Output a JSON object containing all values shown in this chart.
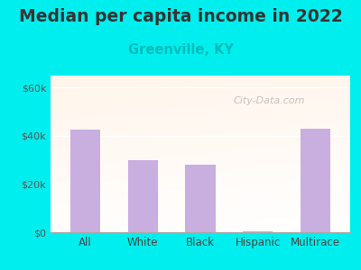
{
  "title": "Median per capita income in 2022",
  "subtitle": "Greenville, KY",
  "categories": [
    "All",
    "White",
    "Black",
    "Hispanic",
    "Multirace"
  ],
  "values": [
    42500,
    30000,
    28000,
    400,
    43000
  ],
  "bar_color": "#c9aee0",
  "title_fontsize": 13.5,
  "subtitle_fontsize": 10.5,
  "subtitle_color": "#00bbbb",
  "background_outer": "#00eeee",
  "ylim": [
    0,
    65000
  ],
  "yticks": [
    0,
    20000,
    40000,
    60000
  ],
  "ytick_labels": [
    "$0",
    "$20k",
    "$40k",
    "$60k"
  ],
  "watermark": "City-Data.com"
}
